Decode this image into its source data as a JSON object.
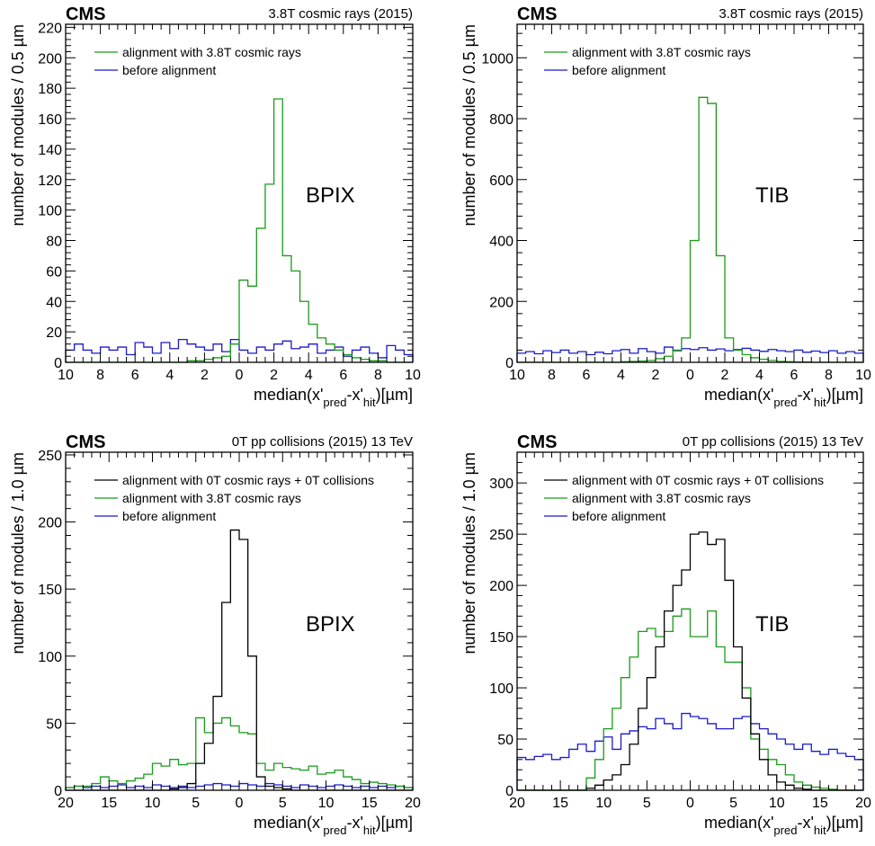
{
  "chart_data": [
    {
      "type": "histogram",
      "experiment": "CMS",
      "header": "3.8T cosmic rays (2015)",
      "detector_label": "BPIX",
      "xlabel": "median(x'pred-x'hit)[µm]",
      "ylabel": "number of modules / 0.5 µm",
      "xlim": [
        -10,
        10
      ],
      "ylim": [
        0,
        222
      ],
      "bin_width": 0.5,
      "x_ticks": [
        -10,
        -8,
        -6,
        -4,
        -2,
        0,
        2,
        4,
        6,
        8,
        10
      ],
      "x_tick_labels": [
        "10",
        "8",
        "6",
        "4",
        "2",
        "0",
        "2",
        "4",
        "6",
        "8",
        "10"
      ],
      "y_ticks": [
        0,
        20,
        40,
        60,
        80,
        100,
        120,
        140,
        160,
        180,
        200,
        220
      ],
      "y_tick_labels": [
        "0",
        "20",
        "40",
        "60",
        "80",
        "100",
        "120",
        "140",
        "160",
        "180",
        "200",
        "220"
      ],
      "legend_position": "top-left",
      "series": [
        {
          "name": "alignment with 3.8T cosmic rays",
          "color": "#1a9a1a",
          "values": [
            0,
            0,
            0,
            0,
            0,
            0,
            0,
            0,
            0,
            0,
            0,
            0,
            0,
            0,
            1,
            1,
            2,
            3,
            4,
            12,
            54,
            50,
            88,
            117,
            173,
            70,
            60,
            40,
            25,
            16,
            12,
            8,
            5,
            3,
            2,
            1,
            1,
            0,
            0,
            0
          ]
        },
        {
          "name": "before alignment",
          "color": "#1a1acc",
          "values": [
            8,
            12,
            8,
            6,
            10,
            8,
            10,
            5,
            13,
            10,
            6,
            13,
            9,
            15,
            12,
            10,
            8,
            12,
            7,
            15,
            8,
            6,
            10,
            8,
            12,
            14,
            9,
            10,
            12,
            6,
            8,
            10,
            4,
            8,
            10,
            6,
            3,
            11,
            8,
            5
          ]
        }
      ]
    },
    {
      "type": "histogram",
      "experiment": "CMS",
      "header": "3.8T cosmic rays (2015)",
      "detector_label": "TIB",
      "xlabel": "median(x'pred-x'hit)[µm]",
      "ylabel": "number of modules / 0.5 µm",
      "xlim": [
        -10,
        10
      ],
      "ylim": [
        0,
        1110
      ],
      "bin_width": 0.5,
      "x_ticks": [
        -10,
        -8,
        -6,
        -4,
        -2,
        0,
        2,
        4,
        6,
        8,
        10
      ],
      "x_tick_labels": [
        "10",
        "8",
        "6",
        "4",
        "2",
        "0",
        "2",
        "4",
        "6",
        "8",
        "10"
      ],
      "y_ticks": [
        0,
        200,
        400,
        600,
        800,
        1000
      ],
      "y_tick_labels": [
        "0",
        "200",
        "400",
        "600",
        "800",
        "1000"
      ],
      "legend_position": "top-left",
      "series": [
        {
          "name": "alignment with 3.8T cosmic rays",
          "color": "#1a9a1a",
          "values": [
            0,
            0,
            0,
            0,
            0,
            0,
            0,
            0,
            0,
            0,
            0,
            0,
            2,
            3,
            4,
            6,
            12,
            20,
            40,
            80,
            400,
            870,
            850,
            350,
            80,
            40,
            25,
            15,
            10,
            6,
            3,
            2,
            1,
            1,
            0,
            0,
            0,
            0,
            0,
            0
          ]
        },
        {
          "name": "before alignment",
          "color": "#1a1acc",
          "values": [
            30,
            35,
            28,
            38,
            32,
            40,
            30,
            35,
            25,
            33,
            28,
            38,
            42,
            30,
            45,
            35,
            30,
            50,
            38,
            45,
            42,
            48,
            40,
            44,
            38,
            42,
            46,
            40,
            36,
            42,
            38,
            35,
            40,
            33,
            37,
            32,
            38,
            30,
            35,
            30
          ]
        }
      ]
    },
    {
      "type": "histogram",
      "experiment": "CMS",
      "header": "0T pp collisions (2015) 13 TeV",
      "detector_label": "BPIX",
      "xlabel": "median(x'pred-x'hit)[µm]",
      "ylabel": "number of modules / 1.0 µm",
      "xlim": [
        -20,
        20
      ],
      "ylim": [
        0,
        252
      ],
      "bin_width": 1.0,
      "x_ticks": [
        -20,
        -15,
        -10,
        -5,
        0,
        5,
        10,
        15,
        20
      ],
      "x_tick_labels": [
        "20",
        "15",
        "10",
        "5",
        "0",
        "5",
        "10",
        "15",
        "20"
      ],
      "y_ticks": [
        0,
        50,
        100,
        150,
        200,
        250
      ],
      "y_tick_labels": [
        "0",
        "50",
        "100",
        "150",
        "200",
        "250"
      ],
      "legend_position": "top-left",
      "series": [
        {
          "name": "alignment with 0T cosmic rays + 0T collisions",
          "color": "#000000",
          "values": [
            0,
            0,
            0,
            0,
            0,
            0,
            0,
            0,
            0,
            0,
            0,
            0,
            1,
            2,
            5,
            20,
            35,
            70,
            140,
            194,
            187,
            100,
            10,
            3,
            2,
            1,
            0,
            0,
            0,
            0,
            0,
            0,
            0,
            0,
            0,
            0,
            0,
            0,
            0,
            0
          ]
        },
        {
          "name": "alignment with 3.8T cosmic rays",
          "color": "#1a9a1a",
          "values": [
            2,
            3,
            3,
            5,
            10,
            7,
            5,
            7,
            9,
            12,
            20,
            18,
            23,
            19,
            20,
            54,
            43,
            50,
            54,
            48,
            43,
            42,
            20,
            15,
            20,
            17,
            16,
            15,
            18,
            12,
            13,
            15,
            10,
            8,
            5,
            6,
            5,
            4,
            3,
            2
          ]
        },
        {
          "name": "before alignment",
          "color": "#1a1acc",
          "values": [
            2,
            3,
            2,
            3,
            2,
            3,
            4,
            2,
            3,
            2,
            4,
            3,
            2,
            3,
            2,
            3,
            4,
            5,
            4,
            3,
            5,
            4,
            3,
            5,
            4,
            3,
            2,
            4,
            3,
            2,
            3,
            4,
            3,
            2,
            3,
            2,
            3,
            2,
            3,
            2
          ]
        }
      ]
    },
    {
      "type": "histogram",
      "experiment": "CMS",
      "header": "0T pp collisions (2015) 13 TeV",
      "detector_label": "TIB",
      "xlabel": "median(x'pred-x'hit)[µm]",
      "ylabel": "number of modules / 1.0 µm",
      "xlim": [
        -20,
        20
      ],
      "ylim": [
        0,
        330
      ],
      "bin_width": 1.0,
      "x_ticks": [
        -20,
        -15,
        -10,
        -5,
        0,
        5,
        10,
        15,
        20
      ],
      "x_tick_labels": [
        "20",
        "15",
        "10",
        "5",
        "0",
        "5",
        "10",
        "15",
        "20"
      ],
      "y_ticks": [
        0,
        50,
        100,
        150,
        200,
        250,
        300
      ],
      "y_tick_labels": [
        "0",
        "50",
        "100",
        "150",
        "200",
        "250",
        "300"
      ],
      "legend_position": "top-left",
      "series": [
        {
          "name": "alignment with 0T cosmic rays + 0T collisions",
          "color": "#000000",
          "values": [
            0,
            0,
            0,
            0,
            0,
            0,
            0,
            0,
            2,
            5,
            10,
            15,
            25,
            45,
            80,
            110,
            140,
            175,
            200,
            215,
            250,
            252,
            240,
            245,
            205,
            140,
            90,
            55,
            30,
            15,
            8,
            5,
            2,
            1,
            0,
            0,
            0,
            0,
            0,
            0
          ]
        },
        {
          "name": "alignment with 3.8T cosmic rays",
          "color": "#1a9a1a",
          "values": [
            0,
            0,
            0,
            0,
            0,
            0,
            0,
            0,
            12,
            30,
            60,
            80,
            110,
            130,
            155,
            158,
            150,
            155,
            170,
            177,
            150,
            150,
            175,
            140,
            125,
            125,
            100,
            50,
            40,
            30,
            25,
            15,
            8,
            5,
            3,
            2,
            1,
            0,
            0,
            0
          ]
        },
        {
          "name": "before alignment",
          "color": "#1a1acc",
          "values": [
            32,
            30,
            33,
            35,
            30,
            32,
            40,
            45,
            38,
            48,
            52,
            40,
            55,
            58,
            62,
            60,
            70,
            65,
            60,
            75,
            72,
            70,
            65,
            60,
            60,
            70,
            72,
            65,
            60,
            55,
            50,
            45,
            40,
            45,
            38,
            35,
            40,
            36,
            33,
            30
          ]
        }
      ]
    }
  ]
}
